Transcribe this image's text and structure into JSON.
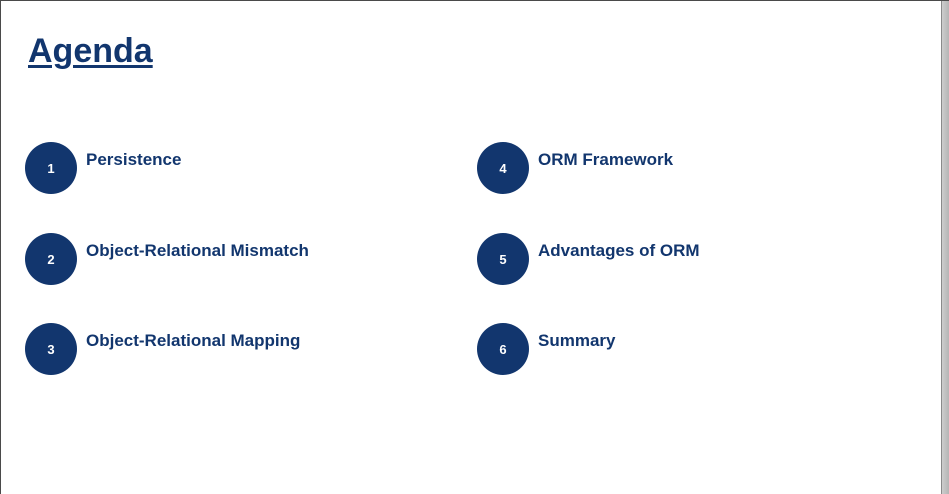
{
  "slide": {
    "title": "Agenda",
    "accent_color": "#12366e",
    "items": [
      {
        "number": "1",
        "label": "Persistence"
      },
      {
        "number": "2",
        "label": "Object-Relational Mismatch"
      },
      {
        "number": "3",
        "label": "Object-Relational Mapping"
      },
      {
        "number": "4",
        "label": "ORM Framework"
      },
      {
        "number": "5",
        "label": "Advantages of ORM"
      },
      {
        "number": "6",
        "label": "Summary"
      }
    ]
  }
}
